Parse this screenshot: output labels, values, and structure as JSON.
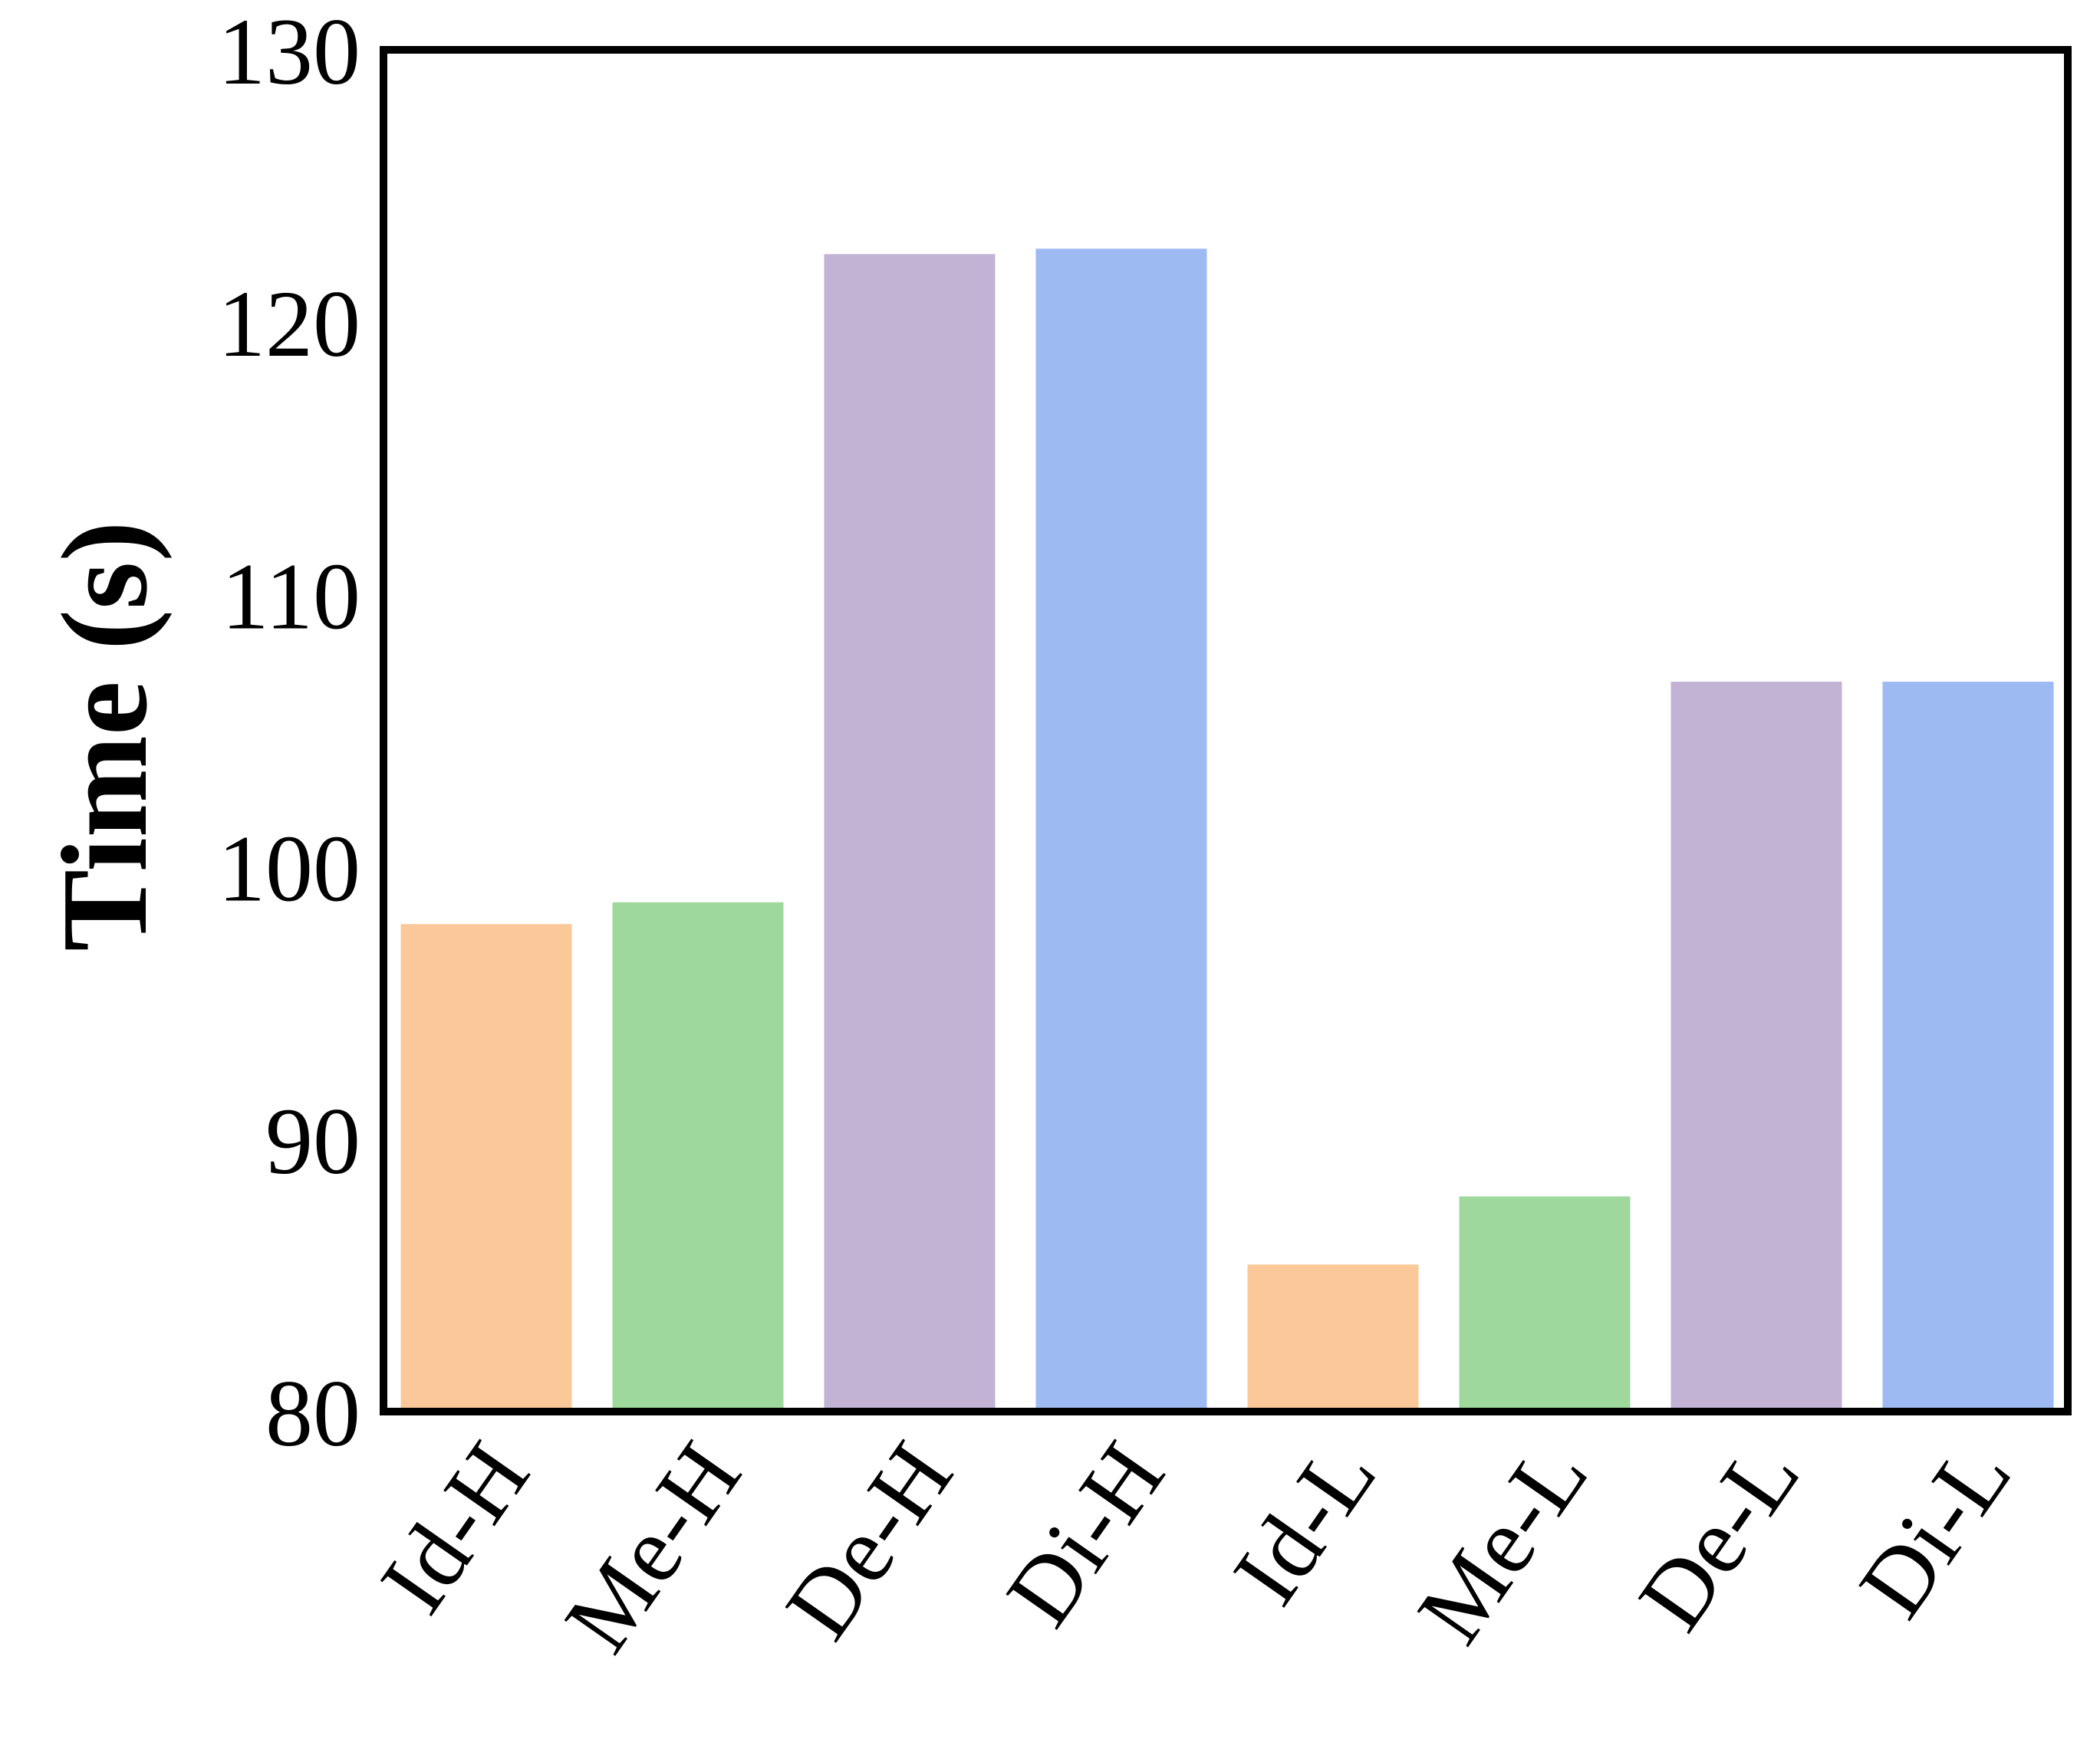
{
  "chart_data": {
    "type": "bar",
    "title": "",
    "xlabel": "",
    "ylabel": "Time (s)",
    "categories": [
      "Id-H",
      "Me-H",
      "De-H",
      "Di-H",
      "Id-L",
      "Me-L",
      "De-L",
      "Di-L"
    ],
    "values": [
      97.9,
      98.7,
      122.5,
      122.7,
      85.4,
      87.9,
      106.8,
      106.8
    ],
    "colors": [
      "#fbc999",
      "#9fd89c",
      "#c2b3d5",
      "#9dbbf2",
      "#fbc999",
      "#9fd89c",
      "#c2b3d5",
      "#9dbbf2"
    ],
    "ylim": [
      80,
      130
    ],
    "yticks": [
      80,
      90,
      100,
      110,
      120,
      130
    ],
    "grid": false,
    "legend": "none"
  }
}
